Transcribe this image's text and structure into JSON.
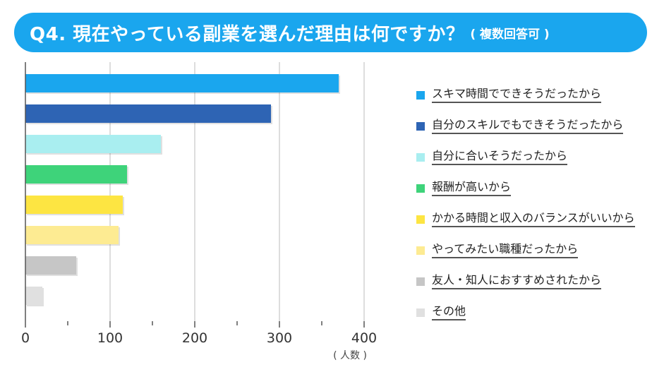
{
  "header": {
    "title": "Q4. 現在やっている副業を選んだ理由は何ですか？",
    "subtitle": "( 複数回答可 )",
    "color": "#1aa6ee"
  },
  "chart_data": {
    "type": "bar",
    "orientation": "horizontal",
    "title": "Q4. 現在やっている副業を選んだ理由は何ですか？",
    "subtitle": "( 複数回答可 )",
    "xlabel": "( 人数 )",
    "ylabel": "",
    "xlim": [
      0,
      400
    ],
    "x_ticks": [
      0,
      100,
      200,
      300,
      400
    ],
    "grid": true,
    "legend_position": "right",
    "categories": [
      "スキマ時間でできそうだったから",
      "自分のスキルでもできそうだったから",
      "自分に合いそうだったから",
      "報酬が高いから",
      "かかる時間と収入のバランスがいいから",
      "やってみたい職種だったから",
      "友人・知人におすすめされたから",
      "その他"
    ],
    "values": [
      370,
      290,
      160,
      120,
      115,
      110,
      60,
      20
    ],
    "colors": [
      "#1aa6ee",
      "#2e64b4",
      "#a9eef0",
      "#3ed37a",
      "#fde542",
      "#fdeb92",
      "#c6c6c6",
      "#e0e0e0"
    ]
  }
}
